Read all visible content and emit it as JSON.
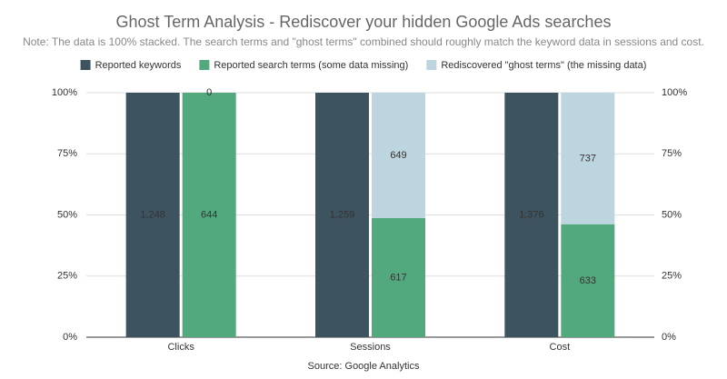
{
  "chart_data": {
    "type": "bar",
    "stack_mode": "percent",
    "title": "Ghost Term Analysis - Rediscover your hidden Google Ads searches",
    "subtitle": "Note: The data is 100% stacked. The search terms and \"ghost terms\" combined should roughly match the keyword data in sessions and cost.",
    "source": "Source: Google Analytics",
    "categories": [
      "Clicks",
      "Sessions",
      "Cost"
    ],
    "series": [
      {
        "name": "Reported keywords",
        "color": "#3d5360",
        "stack": 1,
        "values": [
          1248,
          1259,
          1376
        ],
        "value_labels": [
          "1,248",
          "1,259",
          "1,376"
        ]
      },
      {
        "name": "Reported search terms (some data missing)",
        "color": "#52a97d",
        "stack": 2,
        "values": [
          644,
          617,
          633
        ]
      },
      {
        "name": "Rediscovered \"ghost terms\" (the missing data)",
        "color": "#bcd5de",
        "stack": 2,
        "values": [
          0,
          649,
          737
        ]
      }
    ],
    "ylim": [
      0,
      100
    ],
    "yticks": [
      {
        "value": 0,
        "label": "0%"
      },
      {
        "value": 25,
        "label": "25%"
      },
      {
        "value": 50,
        "label": "50%"
      },
      {
        "value": 75,
        "label": "75%"
      },
      {
        "value": 100,
        "label": "100%"
      }
    ],
    "y2lim": [
      0,
      100
    ],
    "y2ticks": [
      {
        "value": 0,
        "label": "0%"
      },
      {
        "value": 25,
        "label": "25%"
      },
      {
        "value": 50,
        "label": "50%"
      },
      {
        "value": 75,
        "label": "75%"
      },
      {
        "value": 100,
        "label": "100%"
      }
    ],
    "grid": true,
    "legend": "top"
  }
}
